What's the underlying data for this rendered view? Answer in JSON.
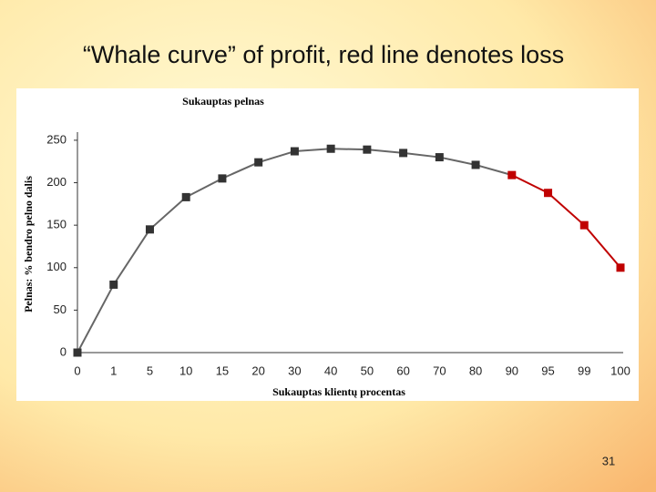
{
  "slide": {
    "title": "“Whale curve” of profit,  red line denotes loss",
    "page_number": "31"
  },
  "chart_data": {
    "type": "line",
    "title": "Sukauptas pelnas",
    "x_label": "Sukauptas klientų procentas",
    "y_label": "Pelnas: % bendro pelno dalis",
    "categories": [
      "0",
      "1",
      "5",
      "10",
      "15",
      "20",
      "30",
      "40",
      "50",
      "60",
      "70",
      "80",
      "90",
      "95",
      "99",
      "100"
    ],
    "values": [
      0,
      80,
      145,
      183,
      205,
      224,
      237,
      240,
      239,
      235,
      230,
      221,
      209,
      188,
      150,
      100
    ],
    "point_colors": [
      "#333333",
      "#333333",
      "#333333",
      "#333333",
      "#333333",
      "#333333",
      "#333333",
      "#333333",
      "#333333",
      "#333333",
      "#333333",
      "#333333",
      "#c00000",
      "#c00000",
      "#c00000",
      "#c00000"
    ],
    "line_color": "#666666",
    "ylim": [
      0,
      260
    ],
    "yticks": [
      0,
      50,
      100,
      150,
      200,
      250
    ]
  }
}
